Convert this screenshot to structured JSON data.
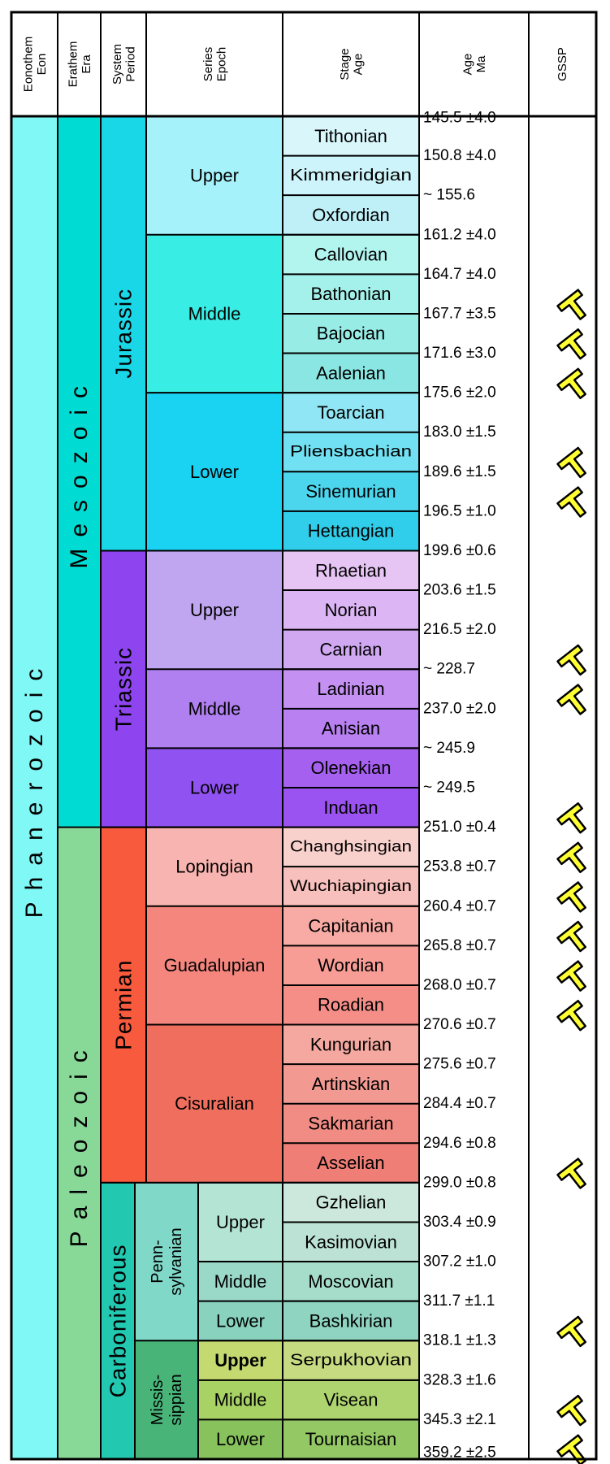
{
  "headers": {
    "eonothem": [
      "Eonothem",
      "Eon"
    ],
    "erathem": [
      "Erathem",
      "Era"
    ],
    "system": [
      "System",
      "Period"
    ],
    "series": [
      "Series",
      "Epoch"
    ],
    "stage": [
      "Stage",
      "Age"
    ],
    "age": [
      "Age",
      "Ma"
    ],
    "gssp": "GSSP"
  },
  "eon": {
    "name": "Phanerozoic",
    "color": "#80f8f6"
  },
  "eras": [
    {
      "name": "Mesozoic",
      "from": 0,
      "to": 18,
      "color": "#00dcd3",
      "text_color": "#000000"
    },
    {
      "name": "Paleozoic",
      "from": 18,
      "to": 34,
      "color": "#88d898",
      "text_color": "#000000"
    }
  ],
  "systems": [
    {
      "name": "Jurassic",
      "from": 0,
      "to": 11,
      "color": "#1ad7e8",
      "text_color": "#000000"
    },
    {
      "name": "Triassic",
      "from": 11,
      "to": 18,
      "color": "#8e45f0",
      "text_color": "#ffffff"
    },
    {
      "name": "Permian",
      "from": 18,
      "to": 27,
      "color": "#f85a3e",
      "text_color": "#000000"
    },
    {
      "name": "Carboniferous",
      "from": 27,
      "to": 34,
      "color": "#22c8b0",
      "text_color": "#ffffff"
    }
  ],
  "subsystems": [
    {
      "name": [
        "Penn-",
        "sylvanian"
      ],
      "from": 27,
      "to": 31,
      "color": "#80d8c8",
      "text_color": "#000000"
    },
    {
      "name": [
        "Missis-",
        "sippian"
      ],
      "from": 31,
      "to": 34,
      "color": "#48b478",
      "text_color": "#ffffff"
    }
  ],
  "series": [
    {
      "name": "Upper",
      "from": 0,
      "to": 3,
      "color": "#a6f2fa",
      "text_color": "#000000",
      "bold": false
    },
    {
      "name": "Middle",
      "from": 3,
      "to": 7,
      "color": "#38eee4",
      "text_color": "#000000",
      "bold": false
    },
    {
      "name": "Lower",
      "from": 7,
      "to": 11,
      "color": "#1ad2f2",
      "text_color": "#ffffff",
      "bold": false
    },
    {
      "name": "Upper",
      "from": 11,
      "to": 14,
      "color": "#c0a6f0",
      "text_color": "#ffffff",
      "bold": false
    },
    {
      "name": "Middle",
      "from": 14,
      "to": 16,
      "color": "#b080f0",
      "text_color": "#ffffff",
      "bold": false
    },
    {
      "name": "Lower",
      "from": 16,
      "to": 18,
      "color": "#9052f0",
      "text_color": "#ffffff",
      "bold": false
    },
    {
      "name": "Lopingian",
      "from": 18,
      "to": 20,
      "color": "#f8b4b0",
      "text_color": "#000000",
      "bold": false
    },
    {
      "name": "Guadalupian",
      "from": 20,
      "to": 23,
      "color": "#f4867e",
      "text_color": "#000000",
      "bold": false
    },
    {
      "name": "Cisuralian",
      "from": 23,
      "to": 27,
      "color": "#f06e5e",
      "text_color": "#000000",
      "bold": false
    },
    {
      "name": "Upper",
      "from": 27,
      "to": 29,
      "color": "#b4e4d4",
      "text_color": "#000000",
      "bold": false
    },
    {
      "name": "Middle",
      "from": 29,
      "to": 30,
      "color": "#9ad8c8",
      "text_color": "#000000",
      "bold": false
    },
    {
      "name": "Lower",
      "from": 30,
      "to": 31,
      "color": "#88d2be",
      "text_color": "#000000",
      "bold": false
    },
    {
      "name": "Upper",
      "from": 31,
      "to": 32,
      "color": "#c4da70",
      "text_color": "#000000",
      "bold": true
    },
    {
      "name": "Middle",
      "from": 32,
      "to": 33,
      "color": "#a8d264",
      "text_color": "#000000",
      "bold": false
    },
    {
      "name": "Lower",
      "from": 33,
      "to": 34,
      "color": "#88c25c",
      "text_color": "#000000",
      "bold": false
    }
  ],
  "stages": [
    {
      "name": "Tithonian",
      "color": "#d9f7fb",
      "text_color": "#000000"
    },
    {
      "name": "Kimmeridgian",
      "color": "#ccf4fa",
      "text_color": "#000000"
    },
    {
      "name": "Oxfordian",
      "color": "#bff0f8",
      "text_color": "#000000"
    },
    {
      "name": "Callovian",
      "color": "#b2f4ee",
      "text_color": "#000000"
    },
    {
      "name": "Bathonian",
      "color": "#a4f0ea",
      "text_color": "#000000"
    },
    {
      "name": "Bajocian",
      "color": "#97ece6",
      "text_color": "#000000"
    },
    {
      "name": "Aalenian",
      "color": "#8ae6e2",
      "text_color": "#000000"
    },
    {
      "name": "Toarcian",
      "color": "#90e6f4",
      "text_color": "#000000"
    },
    {
      "name": "Pliensbachian",
      "color": "#70e0f2",
      "text_color": "#000000"
    },
    {
      "name": "Sinemurian",
      "color": "#4cd6ee",
      "text_color": "#ffffff"
    },
    {
      "name": "Hettangian",
      "color": "#30ceea",
      "text_color": "#ffffff"
    },
    {
      "name": "Rhaetian",
      "color": "#e6c4f4",
      "text_color": "#000000"
    },
    {
      "name": "Norian",
      "color": "#dcb6f4",
      "text_color": "#000000"
    },
    {
      "name": "Carnian",
      "color": "#d0a8f2",
      "text_color": "#000000"
    },
    {
      "name": "Ladinian",
      "color": "#c490f2",
      "text_color": "#ffffff"
    },
    {
      "name": "Anisian",
      "color": "#b880f0",
      "text_color": "#000000"
    },
    {
      "name": "Olenekian",
      "color": "#a660f0",
      "text_color": "#ffffff"
    },
    {
      "name": "Induan",
      "color": "#9a52f0",
      "text_color": "#ffffff"
    },
    {
      "name": "Changhsingian",
      "color": "#f8d0cc",
      "text_color": "#000000"
    },
    {
      "name": "Wuchiapingian",
      "color": "#f8c0bc",
      "text_color": "#000000"
    },
    {
      "name": "Capitanian",
      "color": "#f8aaa4",
      "text_color": "#000000"
    },
    {
      "name": "Wordian",
      "color": "#f89c96",
      "text_color": "#000000"
    },
    {
      "name": "Roadian",
      "color": "#f68e88",
      "text_color": "#000000"
    },
    {
      "name": "Kungurian",
      "color": "#f4a8a0",
      "text_color": "#000000"
    },
    {
      "name": "Artinskian",
      "color": "#f29a92",
      "text_color": "#000000"
    },
    {
      "name": "Sakmarian",
      "color": "#f08c84",
      "text_color": "#000000"
    },
    {
      "name": "Asselian",
      "color": "#ee7e76",
      "text_color": "#000000"
    },
    {
      "name": "Gzhelian",
      "color": "#cce8dc",
      "text_color": "#000000"
    },
    {
      "name": "Kasimovian",
      "color": "#bce2d6",
      "text_color": "#000000"
    },
    {
      "name": "Moscovian",
      "color": "#a6dcca",
      "text_color": "#000000"
    },
    {
      "name": "Bashkirian",
      "color": "#8ed4c0",
      "text_color": "#000000"
    },
    {
      "name": "Serpukhovian",
      "color": "#c6da82",
      "text_color": "#000000"
    },
    {
      "name": "Visean",
      "color": "#aed470",
      "text_color": "#000000"
    },
    {
      "name": "Tournaisian",
      "color": "#94c864",
      "text_color": "#000000"
    }
  ],
  "ages": [
    "145.5 ±4.0",
    "150.8 ±4.0",
    "~ 155.6",
    "161.2 ±4.0",
    "164.7 ±4.0",
    "167.7 ±3.5",
    "171.6 ±3.0",
    "175.6 ±2.0",
    "183.0 ±1.5",
    "189.6 ±1.5",
    "196.5 ±1.0",
    "199.6 ±0.6",
    "203.6 ±1.5",
    "216.5 ±2.0",
    "~ 228.7",
    "237.0 ±2.0",
    "~ 245.9",
    "~ 249.5",
    "251.0 ±0.4",
    "253.8 ±0.7",
    "260.4 ±0.7",
    "265.8 ±0.7",
    "268.0 ±0.7",
    "270.6 ±0.7",
    "275.6 ±0.7",
    "284.4 ±0.7",
    "294.6 ±0.8",
    "299.0 ±0.8",
    "303.4 ±0.9",
    "307.2 ±1.0",
    "311.7 ±1.1",
    "318.1 ±1.3",
    "328.3 ±1.6",
    "345.3 ±2.1",
    "359.2 ±2.5"
  ],
  "gssp_markers": [
    5,
    6,
    7,
    9,
    10,
    14,
    15,
    18,
    19,
    20,
    21,
    22,
    23,
    27,
    31,
    33,
    34
  ],
  "gssp_icon": "golden-spike-icon",
  "gssp_color": "#ffff33"
}
